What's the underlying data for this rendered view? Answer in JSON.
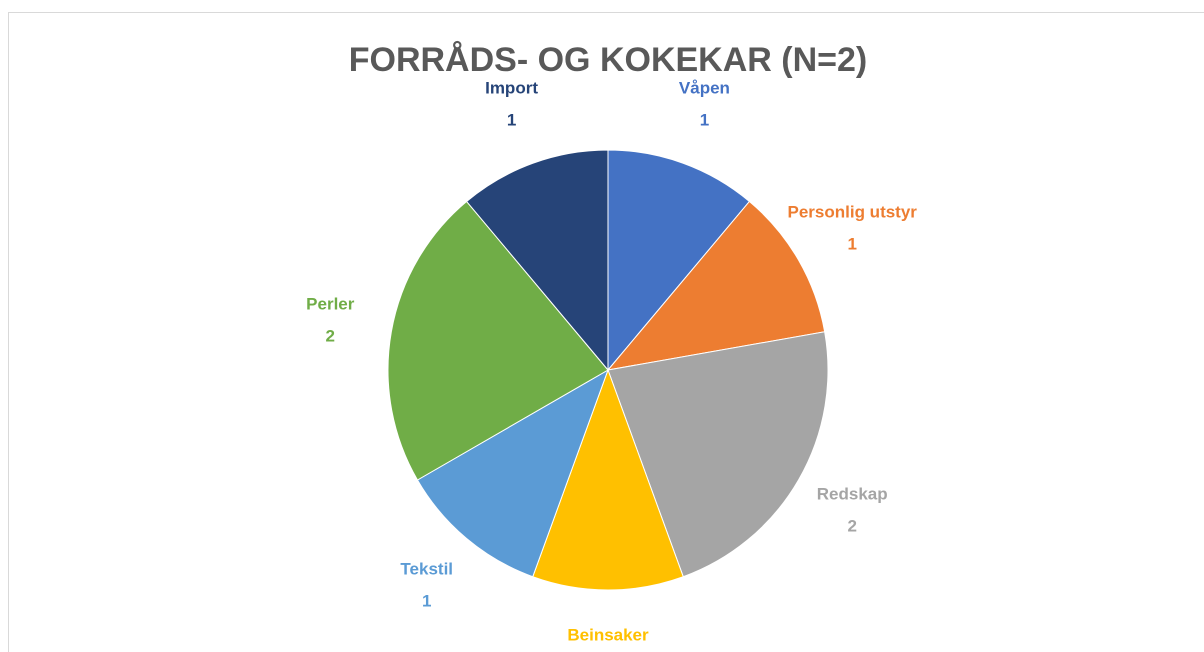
{
  "chart_data": {
    "type": "pie",
    "title": "FORRÅDS- OG KOKEKAR (N=2)",
    "categories": [
      "Våpen",
      "Personlig utstyr",
      "Redskap",
      "Beinsaker",
      "Tekstil",
      "Perler",
      "Import"
    ],
    "values": [
      1,
      1,
      2,
      1,
      1,
      2,
      1
    ],
    "colors": [
      "#4472c4",
      "#ed7d31",
      "#a5a5a5",
      "#ffc000",
      "#5b9bd5",
      "#70ad47",
      "#264478"
    ]
  }
}
